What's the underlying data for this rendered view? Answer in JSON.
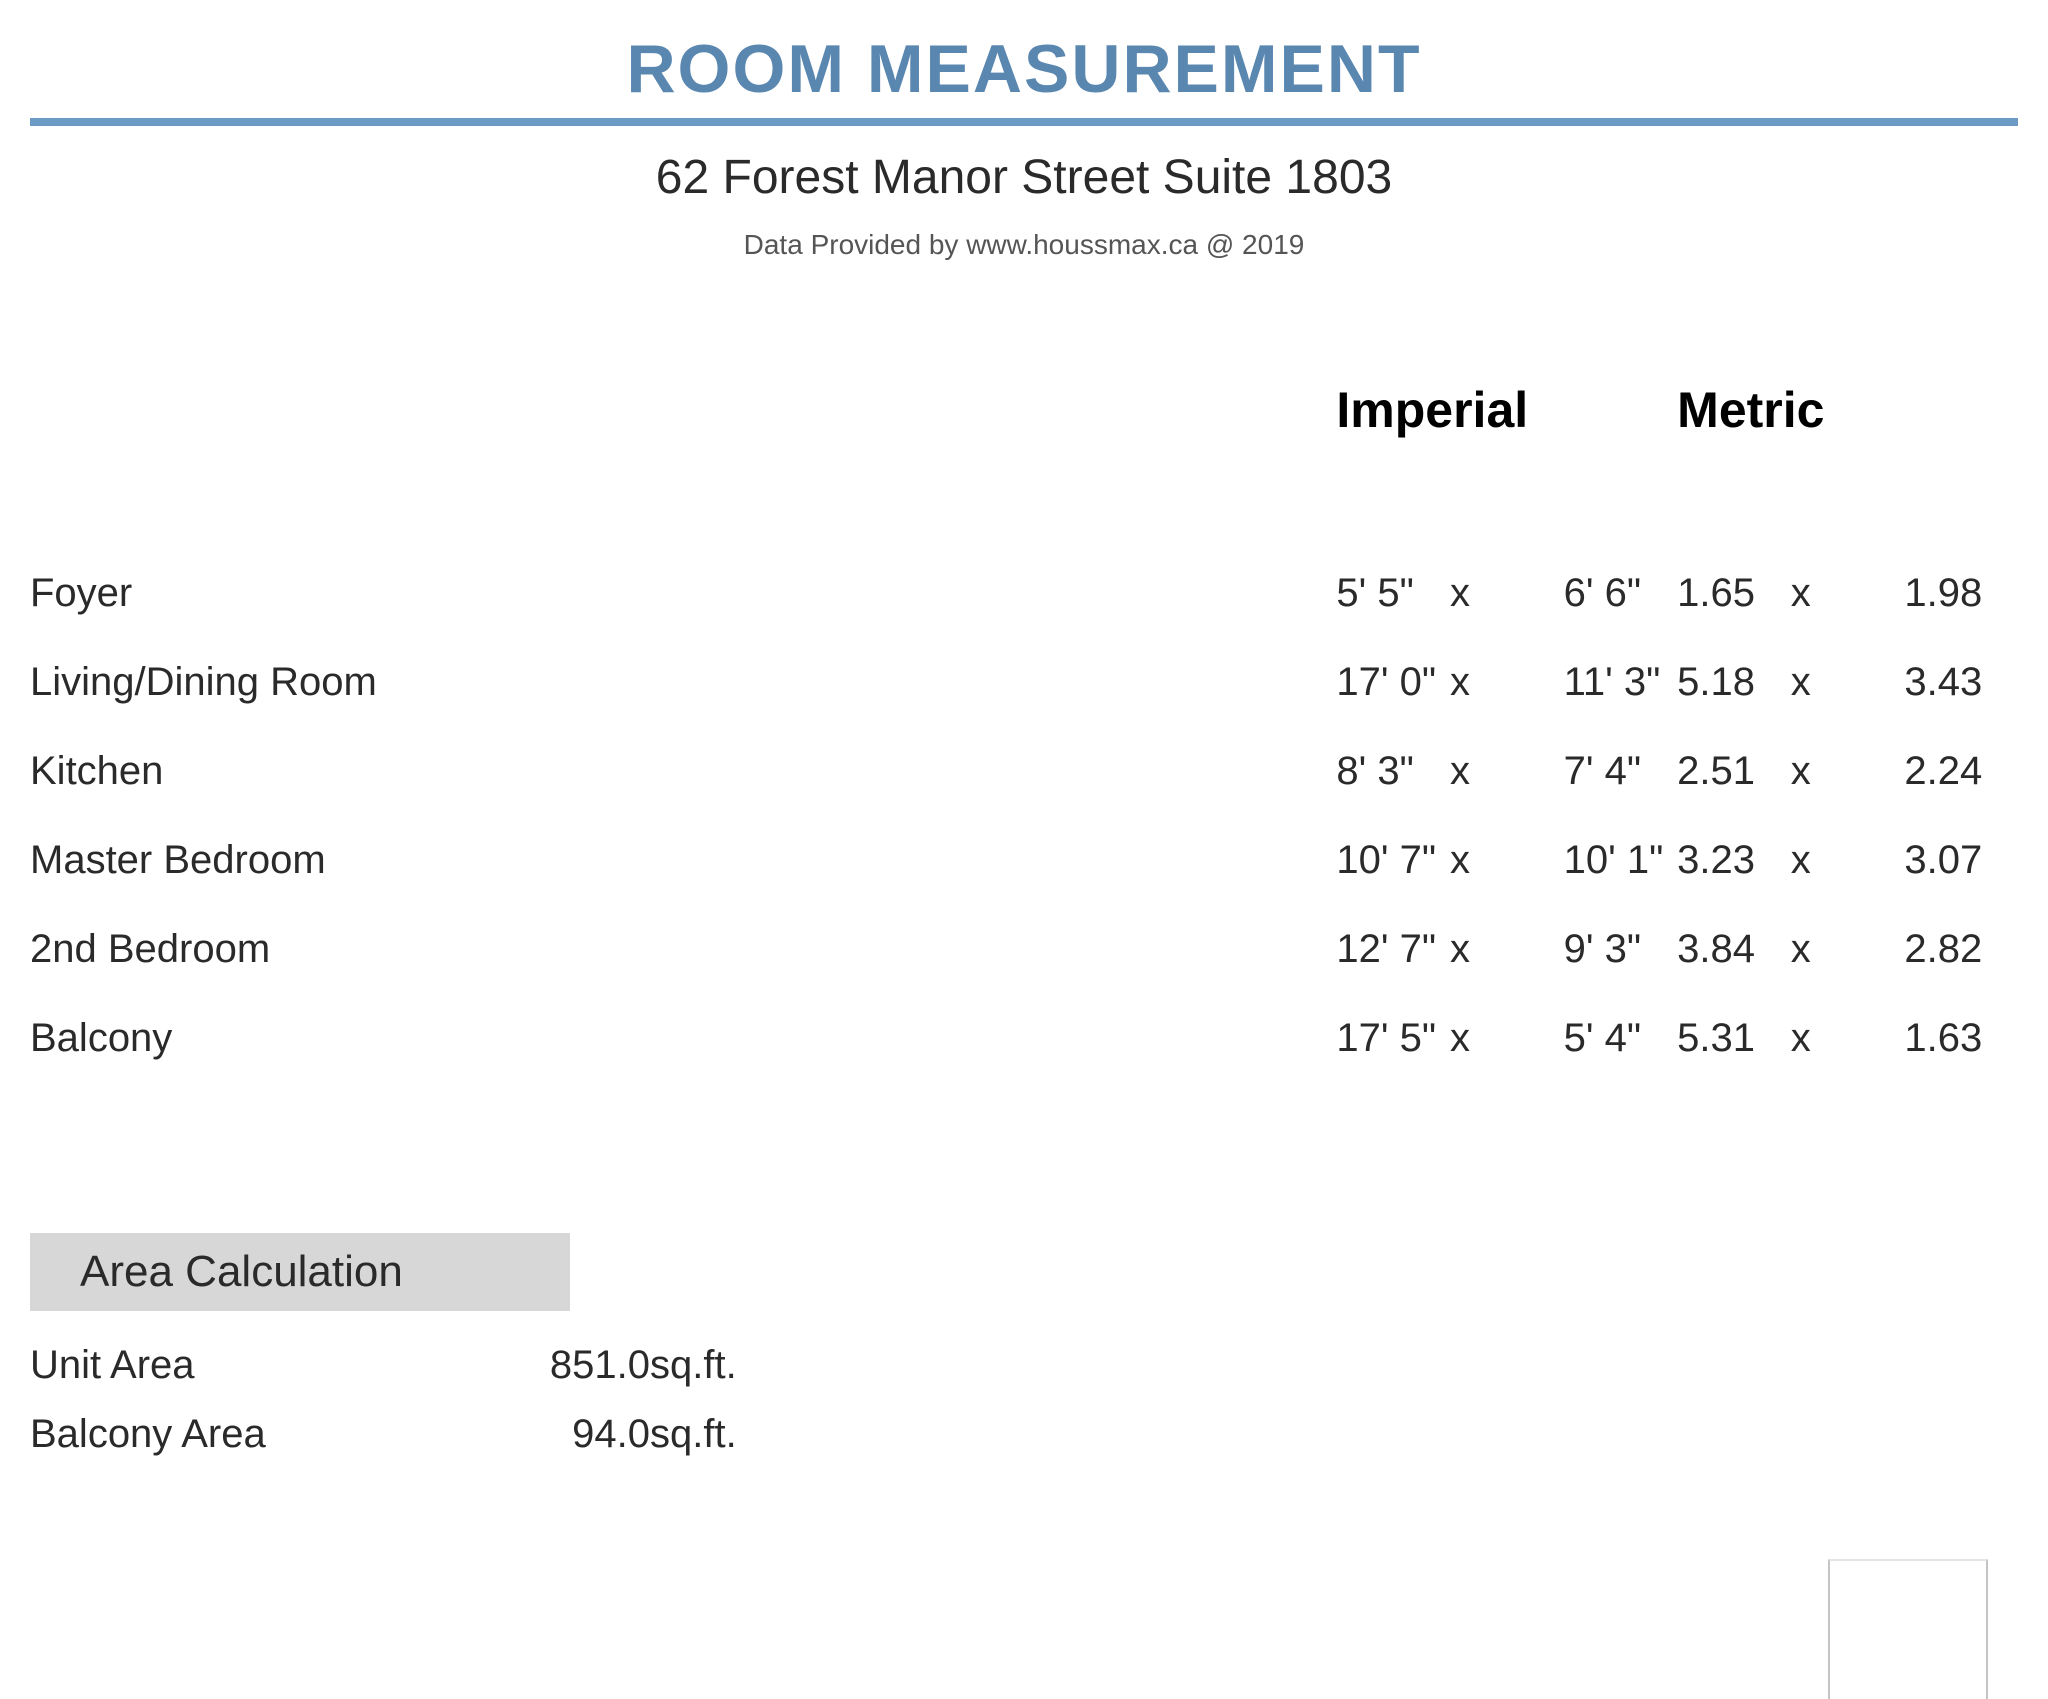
{
  "header": {
    "title": "ROOM MEASUREMENT",
    "title_color": "#5a87b0",
    "rule_color": "#6b9bc4",
    "address": "62 Forest Manor Street Suite 1803",
    "attribution": "Data Provided by www.houssmax.ca @ 2019"
  },
  "columns": {
    "imperial": "Imperial",
    "metric": "Metric",
    "multiplier": "x"
  },
  "rooms": [
    {
      "name": "Foyer",
      "imp_w": "5' 5\"",
      "imp_l": "6' 6\"",
      "met_w": "1.65",
      "met_l": "1.98"
    },
    {
      "name": "Living/Dining Room",
      "imp_w": "17' 0\"",
      "imp_l": "11' 3\"",
      "met_w": "5.18",
      "met_l": "3.43"
    },
    {
      "name": "Kitchen",
      "imp_w": "8' 3\"",
      "imp_l": "7' 4\"",
      "met_w": "2.51",
      "met_l": "2.24"
    },
    {
      "name": "Master Bedroom",
      "imp_w": "10' 7\"",
      "imp_l": "10' 1\"",
      "met_w": "3.23",
      "met_l": "3.07"
    },
    {
      "name": "2nd Bedroom",
      "imp_w": "12' 7\"",
      "imp_l": "9' 3\"",
      "met_w": "3.84",
      "met_l": "2.82"
    },
    {
      "name": "Balcony",
      "imp_w": "17' 5\"",
      "imp_l": "5' 4\"",
      "met_w": "5.31",
      "met_l": "1.63"
    }
  ],
  "area": {
    "heading": "Area Calculation",
    "rows": [
      {
        "label": "Unit Area",
        "value": "851.0",
        "unit": "sq.ft."
      },
      {
        "label": "Balcony Area",
        "value": "94.0",
        "unit": "sq.ft."
      }
    ]
  }
}
